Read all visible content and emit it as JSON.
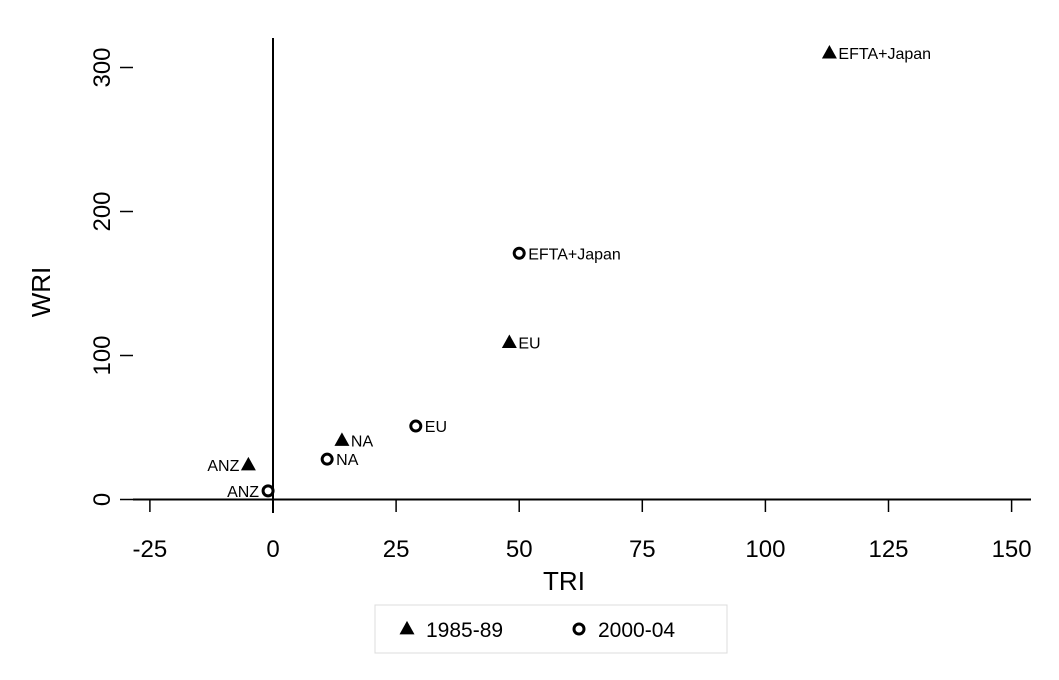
{
  "chart_data": {
    "type": "scatter",
    "xlabel": "TRI",
    "ylabel": "WRI",
    "xlim": [
      -30,
      154
    ],
    "ylim": [
      -5,
      320
    ],
    "x_ticks": [
      -25,
      0,
      25,
      50,
      75,
      100,
      125,
      150
    ],
    "x_tick_labels": [
      "-25",
      "0",
      "25",
      "50",
      "75",
      "100",
      "125",
      "150"
    ],
    "y_ticks": [
      0,
      100,
      200,
      300
    ],
    "y_tick_labels": [
      "0",
      "100",
      "200",
      "300"
    ],
    "grid": false,
    "reference_lines": {
      "x": 0,
      "y": 0
    },
    "legend": {
      "placement": "bottom",
      "entries": [
        "1985-89",
        "2000-04"
      ]
    },
    "series": [
      {
        "name": "1985-89",
        "marker": "filled-triangle",
        "points": [
          {
            "label": "EFTA+Japan",
            "x": 113,
            "y": 310,
            "label_side": "right"
          },
          {
            "label": "EU",
            "x": 48,
            "y": 109,
            "label_side": "right"
          },
          {
            "label": "NA",
            "x": 14,
            "y": 41,
            "label_side": "right"
          },
          {
            "label": "ANZ",
            "x": -5,
            "y": 24,
            "label_side": "left"
          }
        ]
      },
      {
        "name": "2000-04",
        "marker": "hollow-circle",
        "points": [
          {
            "label": "EFTA+Japan",
            "x": 50,
            "y": 171,
            "label_side": "right"
          },
          {
            "label": "EU",
            "x": 29,
            "y": 51,
            "label_side": "right"
          },
          {
            "label": "NA",
            "x": 11,
            "y": 28,
            "label_side": "right"
          },
          {
            "label": "ANZ",
            "x": -1,
            "y": 6,
            "label_side": "left"
          }
        ]
      }
    ]
  }
}
